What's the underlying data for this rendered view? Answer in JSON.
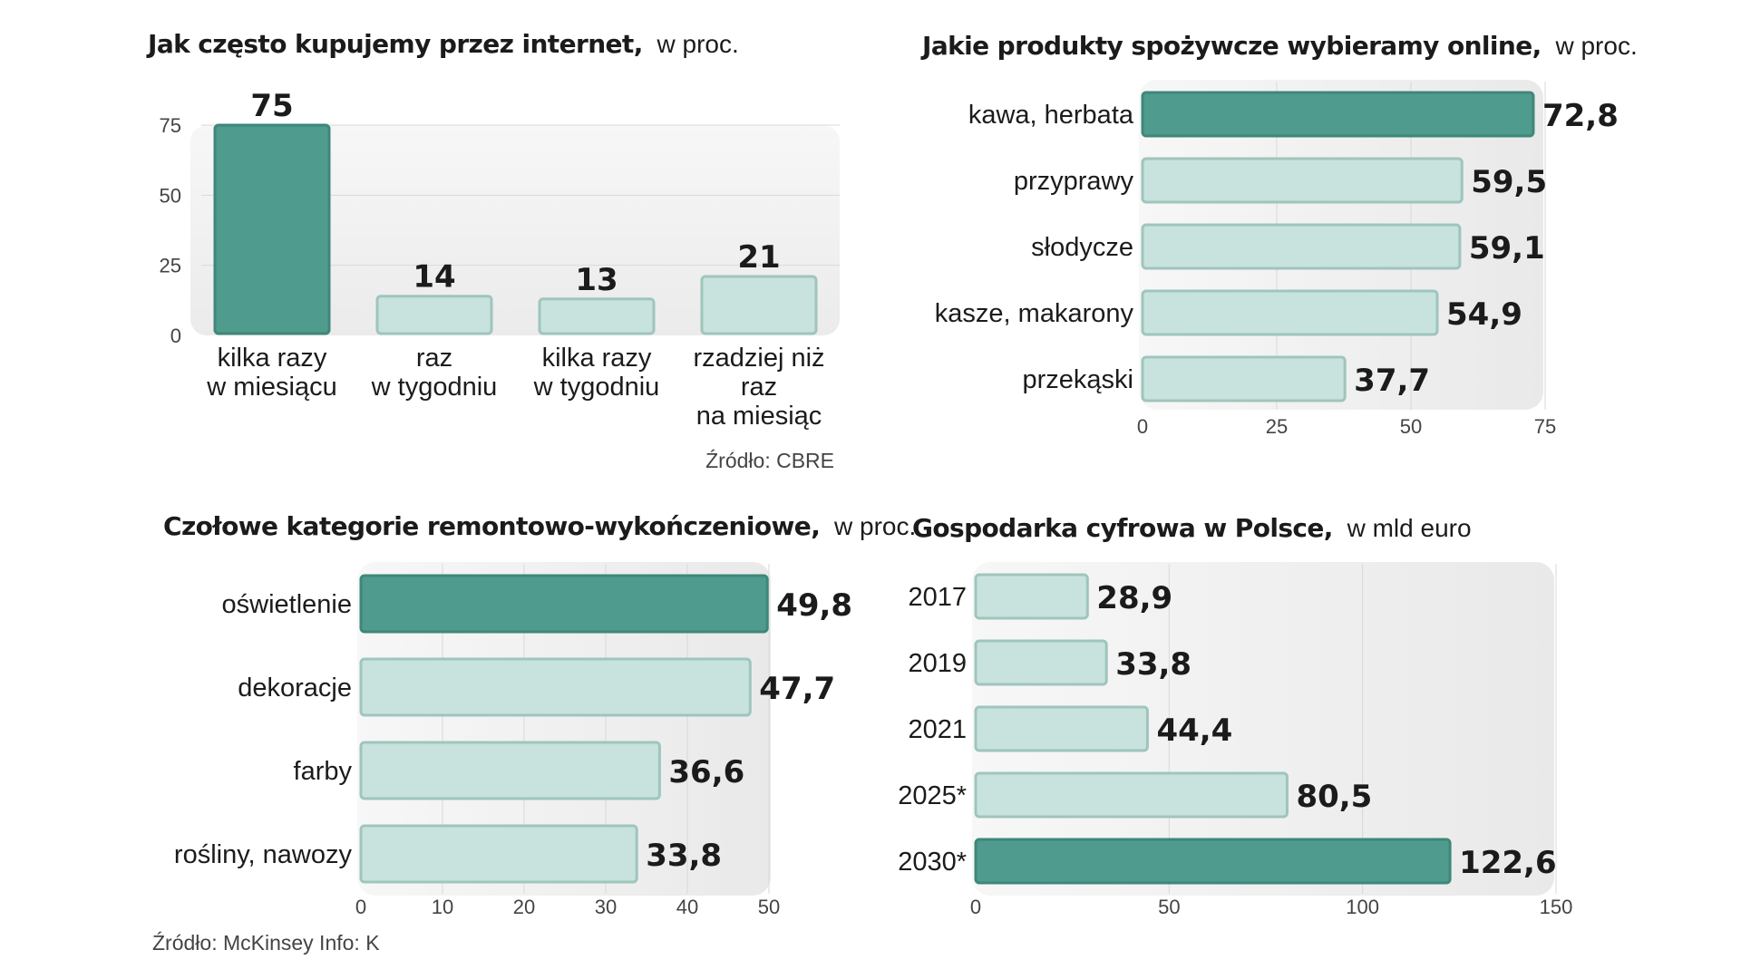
{
  "colors": {
    "accent": "#4f9b8e",
    "accent_stroke": "#3f8779",
    "light_bar": "#c8e2dd",
    "light_bar_stroke": "#9fc5bd",
    "panel_bg": "#f0f0f0",
    "grid": "#d9d9d9",
    "text": "#1b1b1b",
    "muted": "#444444"
  },
  "chart_data": [
    {
      "type": "bar",
      "orientation": "vertical",
      "title": "Jak często kupujemy przez internet,",
      "subtitle": "w proc.",
      "categories": [
        [
          "kilka razy",
          "w miesiącu"
        ],
        [
          "raz",
          "w tygodniu"
        ],
        [
          "kilka razy",
          "w tygodniu"
        ],
        [
          "rzadziej niż",
          "raz",
          "na miesiąc"
        ]
      ],
      "values": [
        75,
        14,
        13,
        21
      ],
      "value_labels": [
        "75",
        "14",
        "13",
        "21"
      ],
      "highlight": [
        0
      ],
      "ylim": [
        0,
        75
      ],
      "yticks": [
        0,
        25,
        50,
        75
      ],
      "ytick_labels": [
        "0",
        "25",
        "50",
        "75"
      ],
      "xlabel": "",
      "ylabel": "",
      "grid": true,
      "source": "Źródło: CBRE"
    },
    {
      "type": "bar",
      "orientation": "horizontal",
      "title": "Jakie produkty spożywcze wybieramy online,",
      "subtitle": "w proc.",
      "categories": [
        "kawa, herbata",
        "przyprawy",
        "słodycze",
        "kasze, makarony",
        "przekąski"
      ],
      "values": [
        72.8,
        59.5,
        59.1,
        54.9,
        37.7
      ],
      "value_labels": [
        "72,8",
        "59,5",
        "59,1",
        "54,9",
        "37,7"
      ],
      "highlight": [
        0
      ],
      "xlim": [
        0,
        75
      ],
      "xticks": [
        0,
        25,
        50,
        75
      ],
      "xtick_labels": [
        "0",
        "25",
        "50",
        "75"
      ],
      "grid": true
    },
    {
      "type": "bar",
      "orientation": "horizontal",
      "title": "Czołowe kategorie remontowo-wykończeniowe,",
      "subtitle": "w proc.",
      "categories": [
        "oświetlenie",
        "dekoracje",
        "farby",
        "rośliny, nawozy"
      ],
      "values": [
        49.8,
        47.7,
        36.6,
        33.8
      ],
      "value_labels": [
        "49,8",
        "47,7",
        "36,6",
        "33,8"
      ],
      "highlight": [
        0
      ],
      "xlim": [
        0,
        50
      ],
      "xticks": [
        0,
        10,
        20,
        30,
        40,
        50
      ],
      "xtick_labels": [
        "0",
        "10",
        "20",
        "30",
        "40",
        "50"
      ],
      "grid": true,
      "source": "Źródło: McKinsey   Info: K"
    },
    {
      "type": "bar",
      "orientation": "horizontal",
      "title": "Gospodarka cyfrowa w Polsce,",
      "subtitle": "w mld euro",
      "categories": [
        "2017",
        "2019",
        "2021",
        "2025*",
        "2030*"
      ],
      "values": [
        28.9,
        33.8,
        44.4,
        80.5,
        122.6
      ],
      "value_labels": [
        "28,9",
        "33,8",
        "44,4",
        "80,5",
        "122,6"
      ],
      "highlight": [
        4
      ],
      "xlim": [
        0,
        150
      ],
      "xticks": [
        0,
        50,
        100,
        150
      ],
      "xtick_labels": [
        "0",
        "50",
        "100",
        "150"
      ],
      "grid": true
    }
  ]
}
